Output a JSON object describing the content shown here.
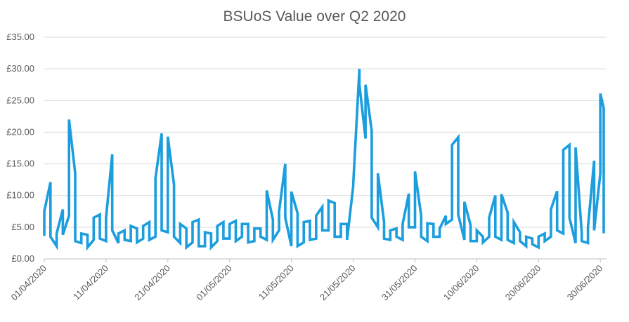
{
  "chart_data": {
    "type": "line",
    "title": "BSUoS Value over Q2 2020",
    "xlabel": "",
    "ylabel": "",
    "ylim": [
      0,
      35
    ],
    "y_ticks": [
      "£0.00",
      "£5.00",
      "£10.00",
      "£15.00",
      "£20.00",
      "£25.00",
      "£30.00",
      "£35.00"
    ],
    "x_range": [
      "2020-04-01",
      "2020-07-01"
    ],
    "x_ticks": [
      "01/04/2020",
      "11/04/2020",
      "21/04/2020",
      "01/05/2020",
      "11/05/2020",
      "21/05/2020",
      "31/05/2020",
      "10/06/2020",
      "20/06/2020",
      "30/06/2020"
    ],
    "grid": true,
    "legend": "none",
    "series_color": "#1B9DDE",
    "x": [
      "2020-04-01",
      "2020-04-02",
      "2020-04-03",
      "2020-04-04",
      "2020-04-05",
      "2020-04-06",
      "2020-04-07",
      "2020-04-08",
      "2020-04-09",
      "2020-04-10",
      "2020-04-11",
      "2020-04-12",
      "2020-04-13",
      "2020-04-14",
      "2020-04-15",
      "2020-04-16",
      "2020-04-17",
      "2020-04-18",
      "2020-04-19",
      "2020-04-20",
      "2020-04-21",
      "2020-04-22",
      "2020-04-23",
      "2020-04-24",
      "2020-04-25",
      "2020-04-26",
      "2020-04-27",
      "2020-04-28",
      "2020-04-29",
      "2020-04-30",
      "2020-05-01",
      "2020-05-02",
      "2020-05-03",
      "2020-05-04",
      "2020-05-05",
      "2020-05-06",
      "2020-05-07",
      "2020-05-08",
      "2020-05-09",
      "2020-05-10",
      "2020-05-11",
      "2020-05-12",
      "2020-05-13",
      "2020-05-14",
      "2020-05-15",
      "2020-05-16",
      "2020-05-17",
      "2020-05-18",
      "2020-05-19",
      "2020-05-20",
      "2020-05-21",
      "2020-05-22",
      "2020-05-23",
      "2020-05-24",
      "2020-05-25",
      "2020-05-26",
      "2020-05-27",
      "2020-05-28",
      "2020-05-29",
      "2020-05-30",
      "2020-05-31",
      "2020-06-01",
      "2020-06-02",
      "2020-06-03",
      "2020-06-04",
      "2020-06-05",
      "2020-06-06",
      "2020-06-07",
      "2020-06-08",
      "2020-06-09",
      "2020-06-10",
      "2020-06-11",
      "2020-06-12",
      "2020-06-13",
      "2020-06-14",
      "2020-06-15",
      "2020-06-16",
      "2020-06-17",
      "2020-06-18",
      "2020-06-19",
      "2020-06-20",
      "2020-06-21",
      "2020-06-22",
      "2020-06-23",
      "2020-06-24",
      "2020-06-25",
      "2020-06-26",
      "2020-06-27",
      "2020-06-28",
      "2020-06-29",
      "2020-06-30"
    ],
    "daily_ranges": [
      [
        3.8,
        7.5
      ],
      [
        3.5,
        12.1
      ],
      [
        2.0,
        4.0
      ],
      [
        3.8,
        7.8
      ],
      [
        6.8,
        22.0
      ],
      [
        2.8,
        13.5
      ],
      [
        2.5,
        4.0
      ],
      [
        1.8,
        3.8
      ],
      [
        3.0,
        6.5
      ],
      [
        3.2,
        7.0
      ],
      [
        2.8,
        6.5
      ],
      [
        4.5,
        16.5
      ],
      [
        2.5,
        4.0
      ],
      [
        3.0,
        4.5
      ],
      [
        2.8,
        5.2
      ],
      [
        2.6,
        4.8
      ],
      [
        3.2,
        5.2
      ],
      [
        3.0,
        5.8
      ],
      [
        3.5,
        12.7
      ],
      [
        4.5,
        19.8
      ],
      [
        4.2,
        19.3
      ],
      [
        3.5,
        11.7
      ],
      [
        2.5,
        5.5
      ],
      [
        1.8,
        4.8
      ],
      [
        2.6,
        5.8
      ],
      [
        2.0,
        6.2
      ],
      [
        2.0,
        4.2
      ],
      [
        1.8,
        4.0
      ],
      [
        2.8,
        5.2
      ],
      [
        3.2,
        5.8
      ],
      [
        3.2,
        5.5
      ],
      [
        2.8,
        6.0
      ],
      [
        3.5,
        5.5
      ],
      [
        2.6,
        5.5
      ],
      [
        2.8,
        4.8
      ],
      [
        3.5,
        4.8
      ],
      [
        3.0,
        10.8
      ],
      [
        3.0,
        6.2
      ],
      [
        4.5,
        7.5
      ],
      [
        6.5,
        15.0
      ],
      [
        2.0,
        10.6
      ],
      [
        2.0,
        7.2
      ],
      [
        2.6,
        5.8
      ],
      [
        3.0,
        6.0
      ],
      [
        3.2,
        6.8
      ],
      [
        4.5,
        8.2
      ],
      [
        4.5,
        9.2
      ],
      [
        3.5,
        8.8
      ],
      [
        3.5,
        5.5
      ],
      [
        3.0,
        5.5
      ],
      [
        11.5,
        11.8
      ],
      [
        27.5,
        30.0
      ],
      [
        19.0,
        27.5
      ],
      [
        6.5,
        20.2
      ],
      [
        5.0,
        13.5
      ],
      [
        3.2,
        5.8
      ],
      [
        3.0,
        4.5
      ],
      [
        3.5,
        4.8
      ],
      [
        3.0,
        5.5
      ],
      [
        5.0,
        10.3
      ],
      [
        5.0,
        13.8
      ],
      [
        3.5,
        6.8
      ],
      [
        2.8,
        5.6
      ],
      [
        3.5,
        5.5
      ],
      [
        3.5,
        4.8
      ],
      [
        5.5,
        6.8
      ],
      [
        6.2,
        18.0
      ],
      [
        7.0,
        19.2
      ],
      [
        3.0,
        9.0
      ],
      [
        2.8,
        5.3
      ],
      [
        2.8,
        4.5
      ],
      [
        2.6,
        3.5
      ],
      [
        3.5,
        6.5
      ],
      [
        3.5,
        10.0
      ],
      [
        3.0,
        10.2
      ],
      [
        3.0,
        7.3
      ],
      [
        2.5,
        5.8
      ],
      [
        2.8,
        4.2
      ],
      [
        2.0,
        3.5
      ],
      [
        2.3,
        3.2
      ],
      [
        1.8,
        3.5
      ],
      [
        2.8,
        4.0
      ],
      [
        3.5,
        7.8
      ],
      [
        4.5,
        10.7
      ],
      [
        4.0,
        17.2
      ],
      [
        6.5,
        18.0
      ],
      [
        2.5,
        17.6
      ],
      [
        2.8,
        4.0
      ],
      [
        2.5,
        5.0
      ],
      [
        4.5,
        15.5
      ],
      [
        13.5,
        26.1
      ]
    ],
    "last_point": {
      "x": "2020-07-01",
      "high": 23.8,
      "low": 4.2
    }
  }
}
